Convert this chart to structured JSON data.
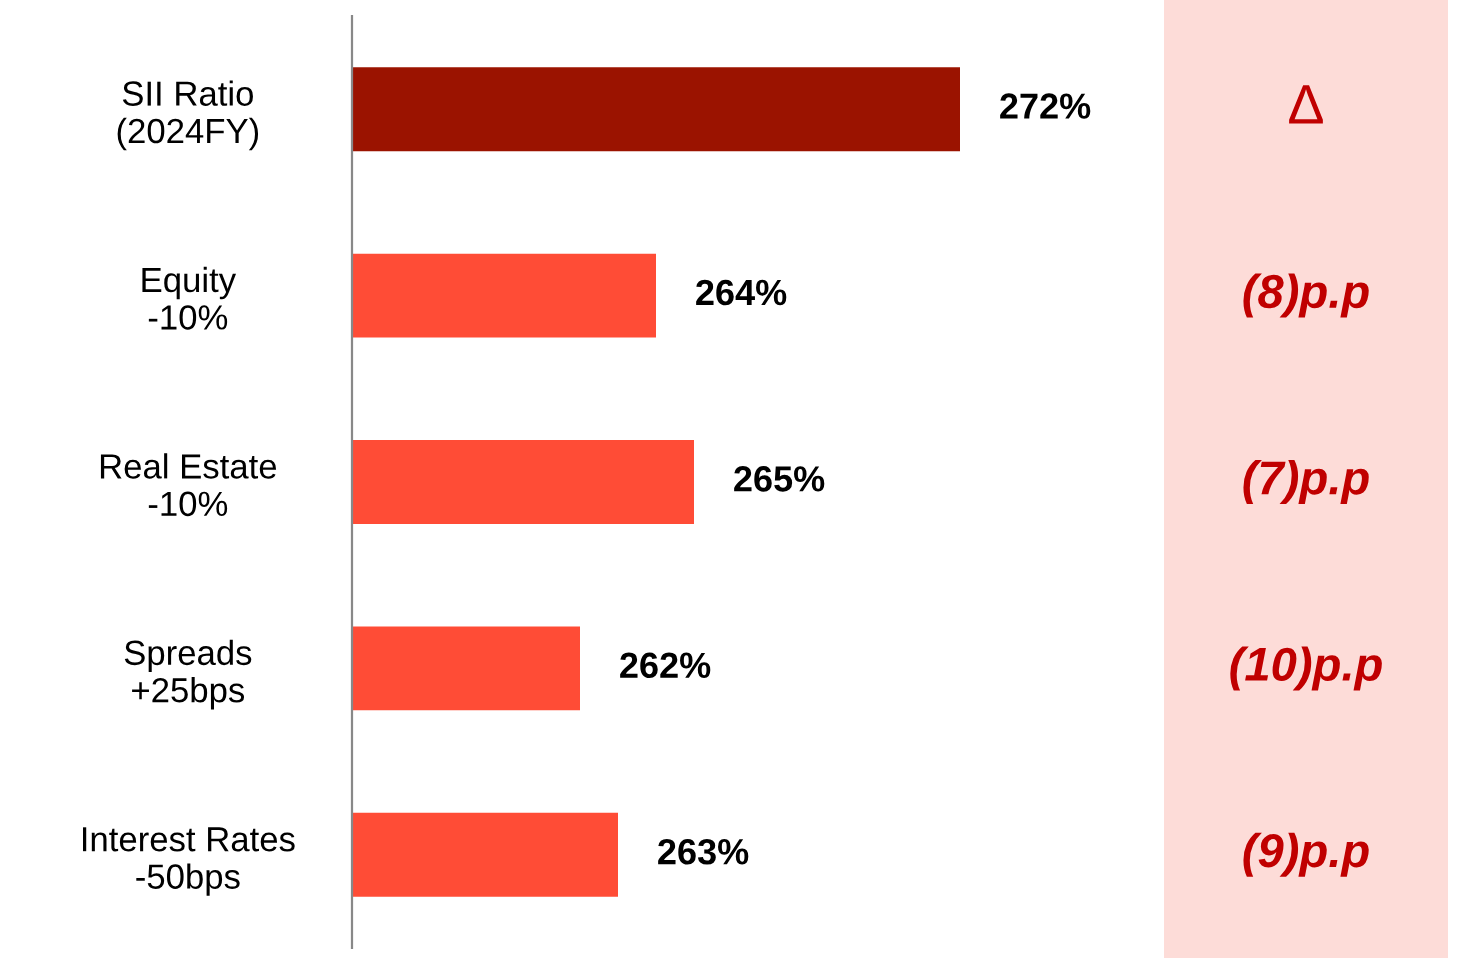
{
  "chart_data": {
    "type": "bar",
    "orientation": "horizontal",
    "categories": [
      "SII Ratio\n(2024FY)",
      "Equity\n-10%",
      "Real Estate\n-10%",
      "Spreads\n+25bps",
      "Interest Rates\n-50bps"
    ],
    "values": [
      272,
      264,
      265,
      262,
      263
    ],
    "colors": [
      "#9b1300",
      "#ff4c36",
      "#ff4c36",
      "#ff4c36",
      "#ff4c36"
    ],
    "value_labels": [
      "272%",
      "264%",
      "265%",
      "262%",
      "263%"
    ],
    "xlim": [
      256,
      272
    ],
    "grid": false,
    "legend": false,
    "annotations": [
      "Δ",
      "(8)p.p",
      "(7)p.p",
      "(10)p.p",
      "(9)p.p"
    ]
  }
}
